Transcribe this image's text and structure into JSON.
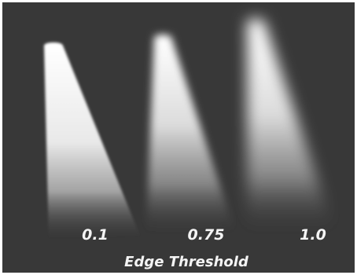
{
  "caption": "Edge Threshold",
  "beams": [
    {
      "label": "0.1"
    },
    {
      "label": "0.75"
    },
    {
      "label": "1.0"
    }
  ]
}
